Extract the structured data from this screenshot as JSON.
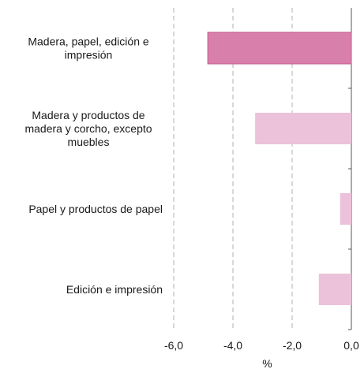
{
  "chart_data": {
    "type": "bar",
    "orientation": "horizontal",
    "categories": [
      [
        "Madera, papel, edición e",
        "impresión"
      ],
      [
        "Madera y productos de",
        "madera y corcho, excepto",
        "muebles"
      ],
      [
        "Papel y productos de papel"
      ],
      [
        "Edición e impresión"
      ]
    ],
    "values": [
      -4.85,
      -3.25,
      -0.38,
      -1.1
    ],
    "xlabel": "%",
    "ylabel": "",
    "xlim": [
      -6.0,
      0.0
    ],
    "xticks": [
      -6.0,
      -4.0,
      -2.0,
      0.0
    ],
    "xtick_labels": [
      "-6,0",
      "-4,0",
      "-2,0",
      "0,0"
    ],
    "grid": "vertical dashed",
    "colors": {
      "highlight": "#D97FAB",
      "highlight_edge": "#C2588E",
      "bar": "#EBC2D9",
      "grid": "#BFBFBF",
      "axis": "#555555"
    },
    "highlight_index": 0
  }
}
